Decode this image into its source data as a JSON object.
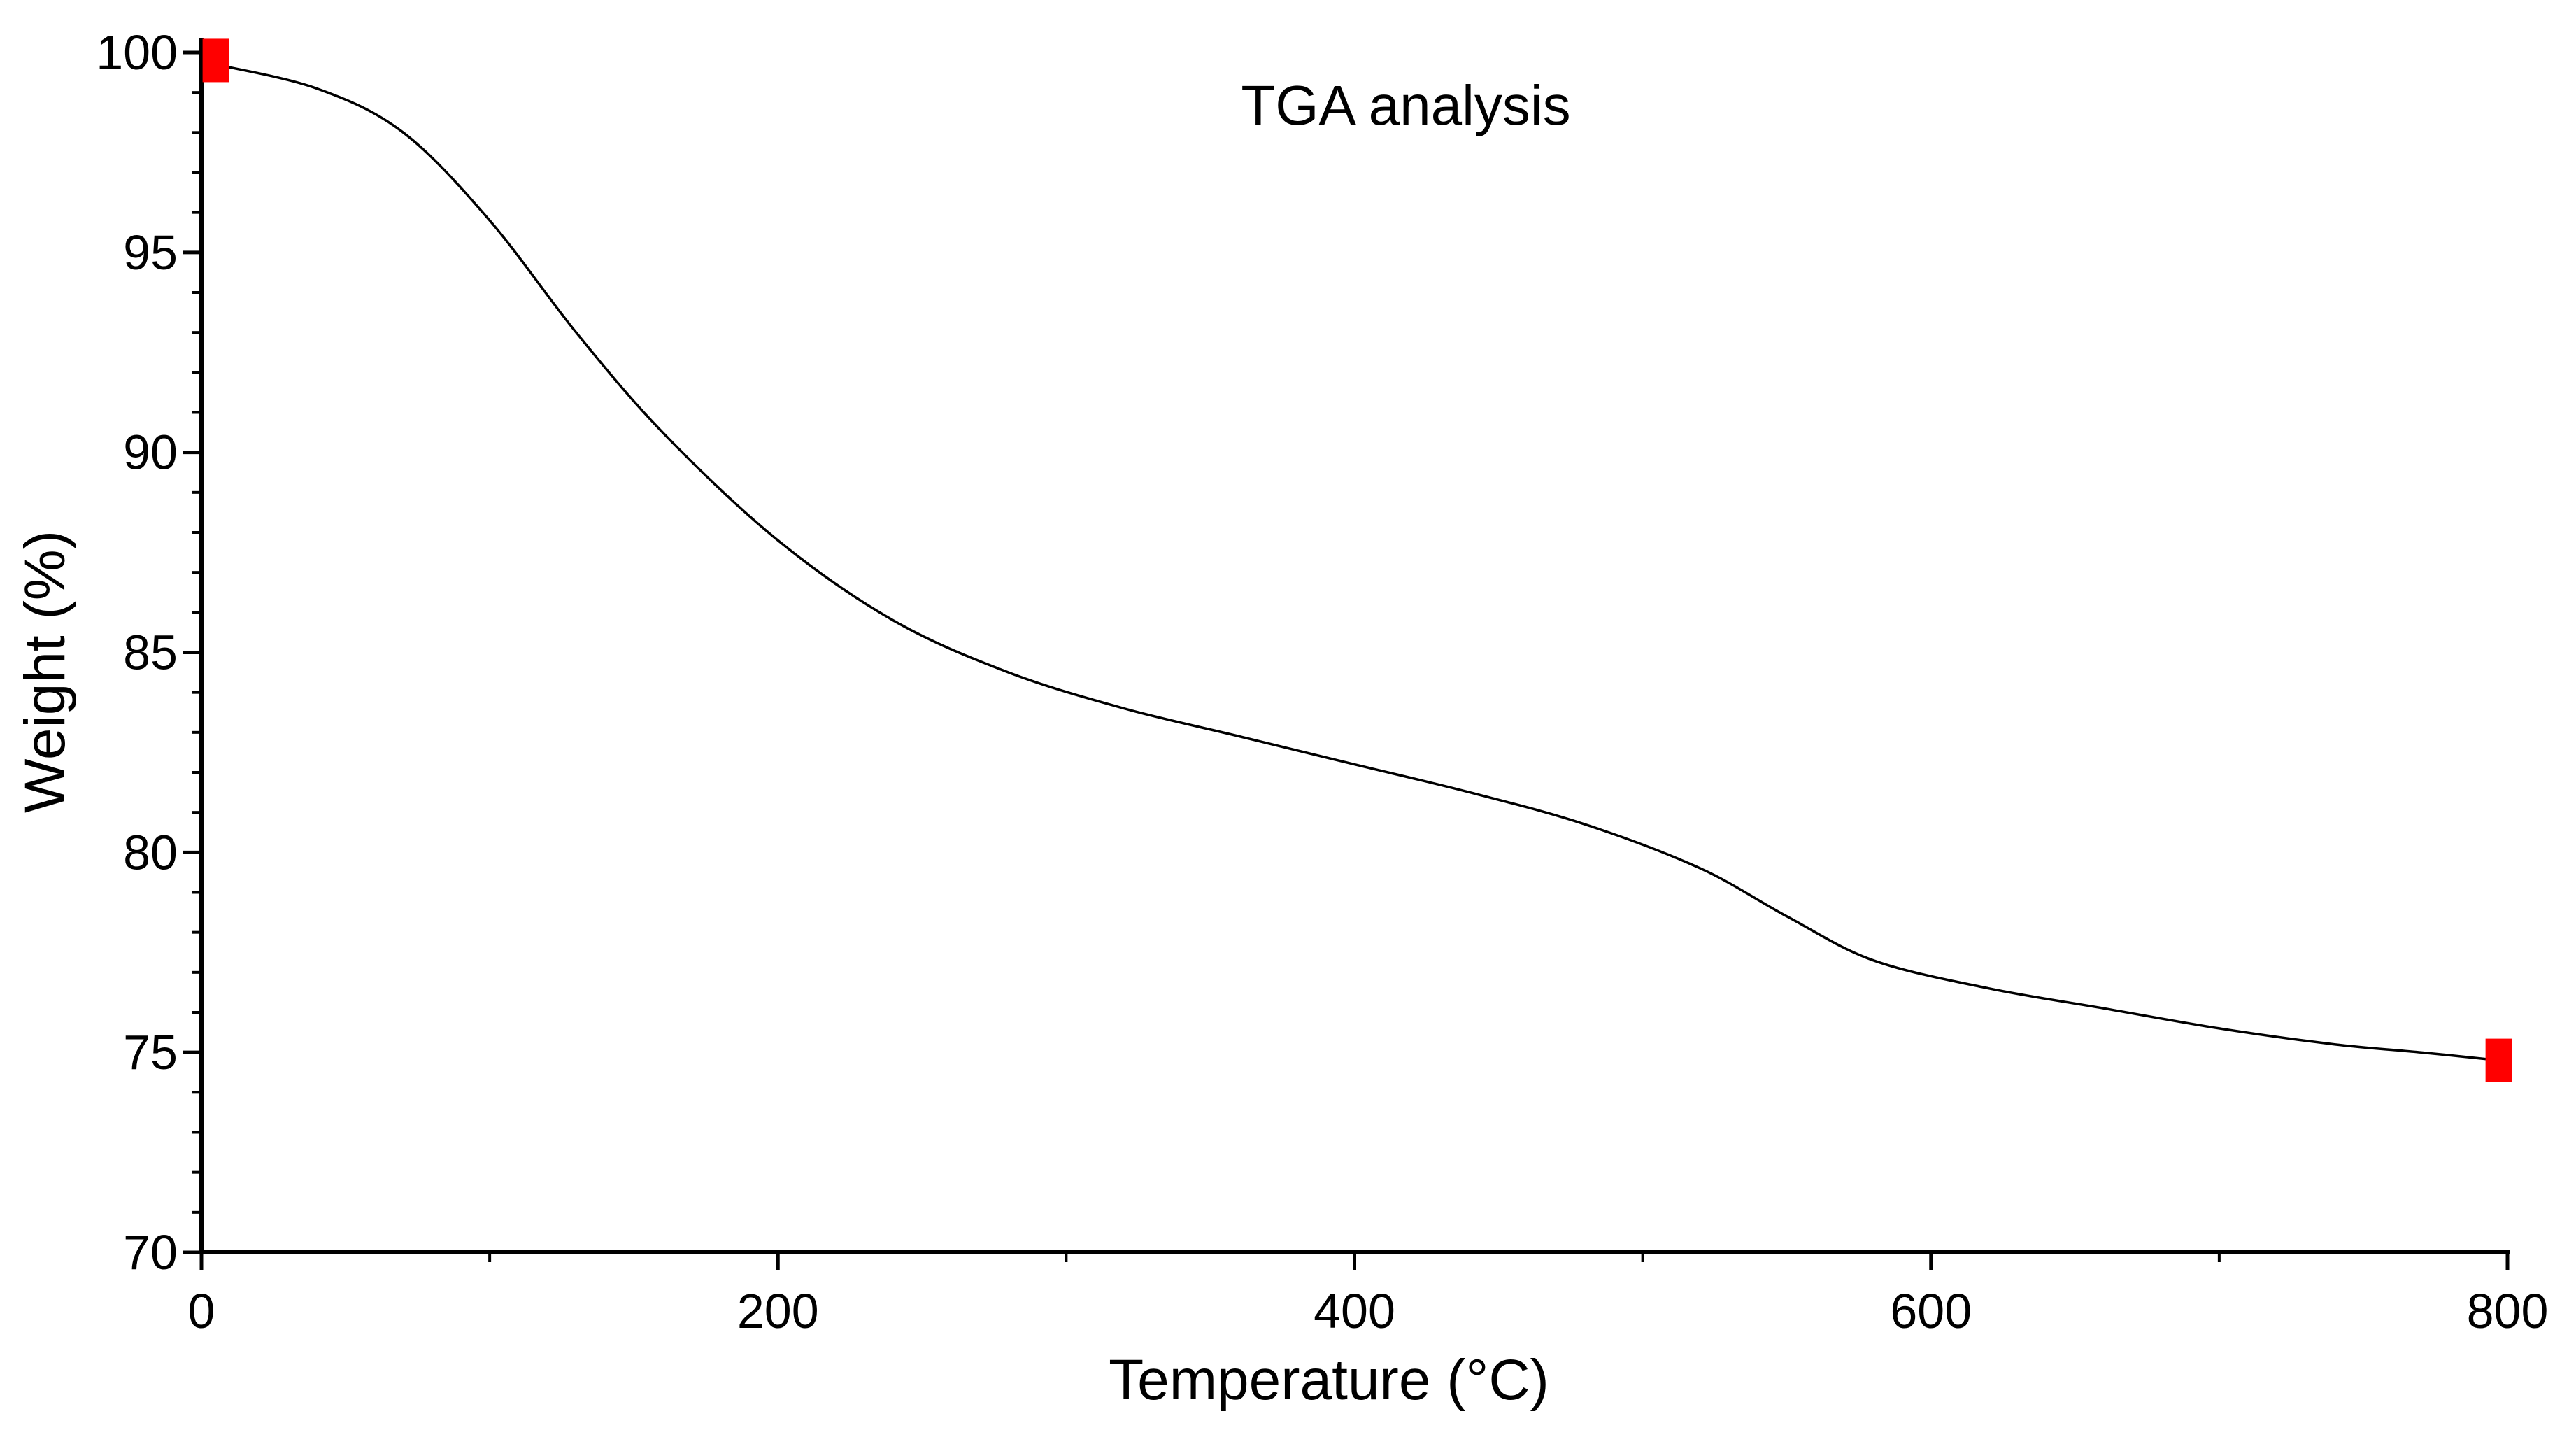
{
  "chart_data": {
    "type": "line",
    "title": "TGA analysis",
    "xlabel": "Temperature (°C)",
    "ylabel": "Weight (%)",
    "xlim": [
      0,
      800
    ],
    "ylim": [
      70,
      100
    ],
    "grid": false,
    "x_ticks": [
      0,
      200,
      400,
      600,
      800
    ],
    "x_tick_labels": [
      "0",
      "200",
      "400",
      "600",
      "800"
    ],
    "y_ticks": [
      70,
      75,
      80,
      85,
      90,
      95,
      100
    ],
    "y_tick_labels": [
      "70",
      "75",
      "80",
      "85",
      "90",
      "95",
      "100"
    ],
    "series": [
      {
        "name": "Weight",
        "color": "#000000",
        "x": [
          5,
          40,
          70,
          100,
          130,
          160,
          200,
          240,
          280,
          320,
          360,
          400,
          440,
          480,
          520,
          550,
          580,
          620,
          660,
          700,
          740,
          770,
          797
        ],
        "y": [
          99.7,
          99.1,
          98.0,
          95.8,
          93.0,
          90.5,
          87.8,
          85.8,
          84.5,
          83.6,
          82.9,
          82.2,
          81.5,
          80.7,
          79.6,
          78.4,
          77.3,
          76.6,
          76.1,
          75.6,
          75.2,
          75.0,
          74.8
        ]
      }
    ],
    "markers": [
      {
        "name": "start-marker",
        "x": 5,
        "y": 99.8,
        "color": "#ff0000"
      },
      {
        "name": "end-marker",
        "x": 797,
        "y": 74.8,
        "color": "#ff0000"
      }
    ]
  }
}
